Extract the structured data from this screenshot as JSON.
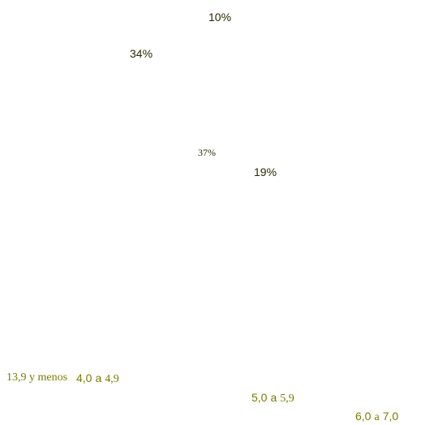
{
  "chart_data": {
    "type": "pie",
    "title": "",
    "categories": [
      "13,9 y menos",
      "4,0 a 4,9",
      "5,0 a 5,9",
      "6,0 a 7,0"
    ],
    "values": [
      10,
      34,
      37,
      19
    ],
    "value_labels": [
      "10%",
      "34%",
      "37%",
      "19%"
    ],
    "legend": {
      "placement": "bottom",
      "entries": [
        {
          "pre": "13,9 y menos",
          "num1": "",
          "sep": "",
          "num2": ""
        },
        {
          "pre": "",
          "num1": "4,0",
          "sep": "a",
          "num2": "4,9"
        },
        {
          "pre": "",
          "num1": "5,0",
          "sep": "a",
          "num2": "5,9"
        },
        {
          "pre": "",
          "num1": "6,0",
          "sep": "a",
          "num2": "7,0"
        }
      ]
    },
    "colors": {
      "label": "#2b2b00",
      "legend": "#7a7a00"
    },
    "grid": false
  }
}
